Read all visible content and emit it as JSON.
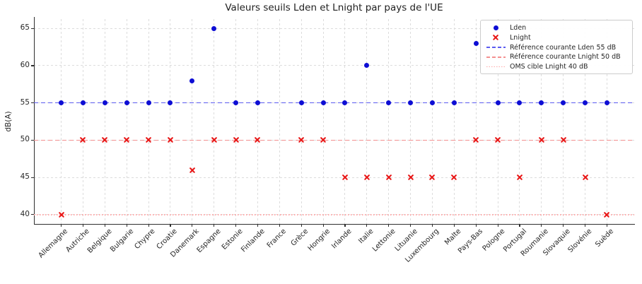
{
  "title": "Valeurs seuils Lden et Lnight par pays de l'UE",
  "ylabel": "dB(A)",
  "chart_data": {
    "type": "scatter",
    "title": "Valeurs seuils Lden et Lnight par pays de l'UE",
    "xlabel": "",
    "ylabel": "dB(A)",
    "categories": [
      "Allemagne",
      "Autriche",
      "Belgique",
      "Bulgarie",
      "Chypre",
      "Croatie",
      "Danemark",
      "Espagne",
      "Estonie",
      "Finlande",
      "France",
      "Grèce",
      "Hongrie",
      "Irlande",
      "Italie",
      "Lettonie",
      "Lituanie",
      "Luxembourg",
      "Malte",
      "Pays-Bas",
      "Pologne",
      "Portugal",
      "Roumanie",
      "Slovaquie",
      "Slovénie",
      "Suède"
    ],
    "series": [
      {
        "name": "Lden",
        "marker": "circle",
        "color": "#0d0dd4",
        "values": [
          55,
          55,
          55,
          55,
          55,
          55,
          58,
          65,
          55,
          55,
          null,
          55,
          55,
          55,
          60,
          55,
          55,
          55,
          55,
          63,
          55,
          55,
          55,
          55,
          55,
          55
        ]
      },
      {
        "name": "Lnight",
        "marker": "x",
        "color": "#e81414",
        "values": [
          40,
          50,
          50,
          50,
          50,
          50,
          46,
          50,
          50,
          50,
          null,
          50,
          50,
          45,
          45,
          45,
          45,
          45,
          45,
          50,
          50,
          45,
          50,
          50,
          45,
          40
        ]
      }
    ],
    "reference_lines": [
      {
        "label": "Référence courante Lden 55 dB",
        "value": 55,
        "color": "#5b5bf0",
        "style": "dashed-blue"
      },
      {
        "label": "Référence courante Lnight 50 dB",
        "value": 50,
        "color": "#f49090",
        "style": "dashed-red"
      },
      {
        "label": "OMS cible Lnight 40 dB",
        "value": 40,
        "color": "#ffa8a8",
        "style": "dotted-red"
      }
    ],
    "yticks": [
      40,
      45,
      50,
      55,
      60,
      65
    ],
    "ylim": [
      38.75,
      66.25
    ],
    "grid": true,
    "legend_position": "top-right"
  }
}
